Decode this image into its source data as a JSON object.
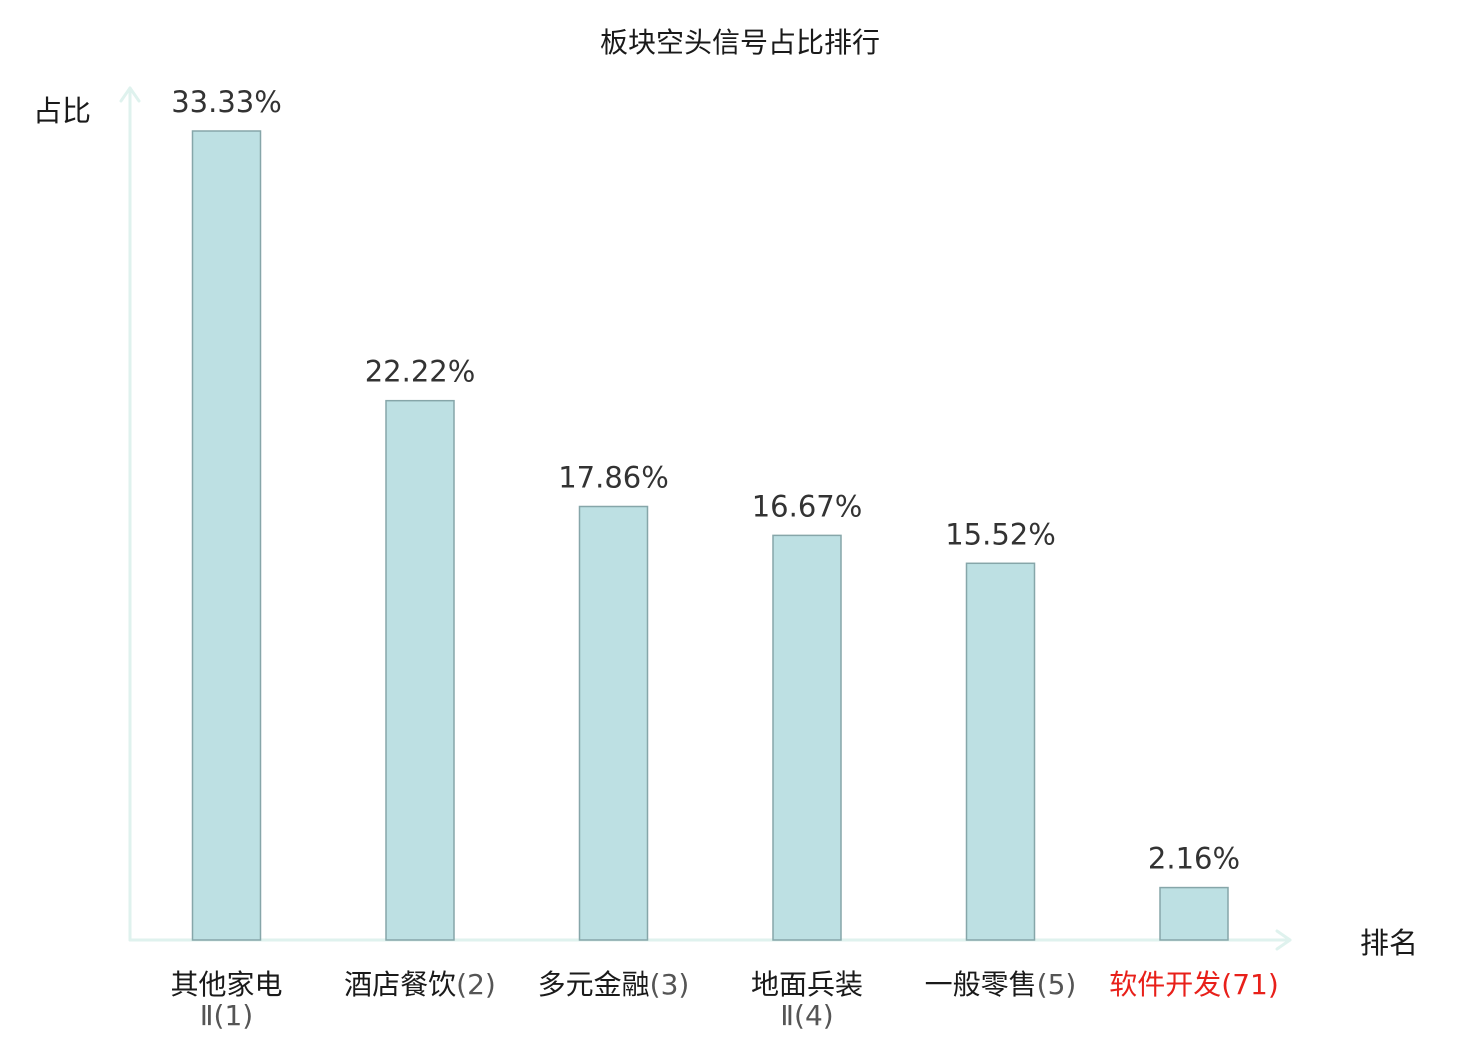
{
  "chart_data": {
    "type": "bar",
    "title": "板块空头信号占比排行",
    "ylabel": "占比",
    "xlabel": "排名",
    "categories": [
      {
        "name": "其他家电",
        "extra": "Ⅱ",
        "rank": "(1)",
        "label": "33.33%",
        "value": 33.33,
        "highlight": false
      },
      {
        "name": "酒店餐饮",
        "extra": "",
        "rank": "(2)",
        "label": "22.22%",
        "value": 22.22,
        "highlight": false
      },
      {
        "name": "多元金融",
        "extra": "",
        "rank": "(3)",
        "label": "17.86%",
        "value": 17.86,
        "highlight": false
      },
      {
        "name": "地面兵装",
        "extra": "Ⅱ",
        "rank": "(4)",
        "label": "16.67%",
        "value": 16.67,
        "highlight": false
      },
      {
        "name": "一般零售",
        "extra": "",
        "rank": "(5)",
        "label": "15.52%",
        "value": 15.52,
        "highlight": false
      },
      {
        "name": "软件开发",
        "extra": "",
        "rank": "(71)",
        "label": "2.16%",
        "value": 2.16,
        "highlight": true
      }
    ],
    "ylim": [
      0,
      33.33
    ],
    "grid": false,
    "colors": {
      "bar_fill": "#bde0e3",
      "bar_stroke": "#86a6a9",
      "axis": "#dff2ee",
      "highlight": "#e8201a"
    }
  }
}
